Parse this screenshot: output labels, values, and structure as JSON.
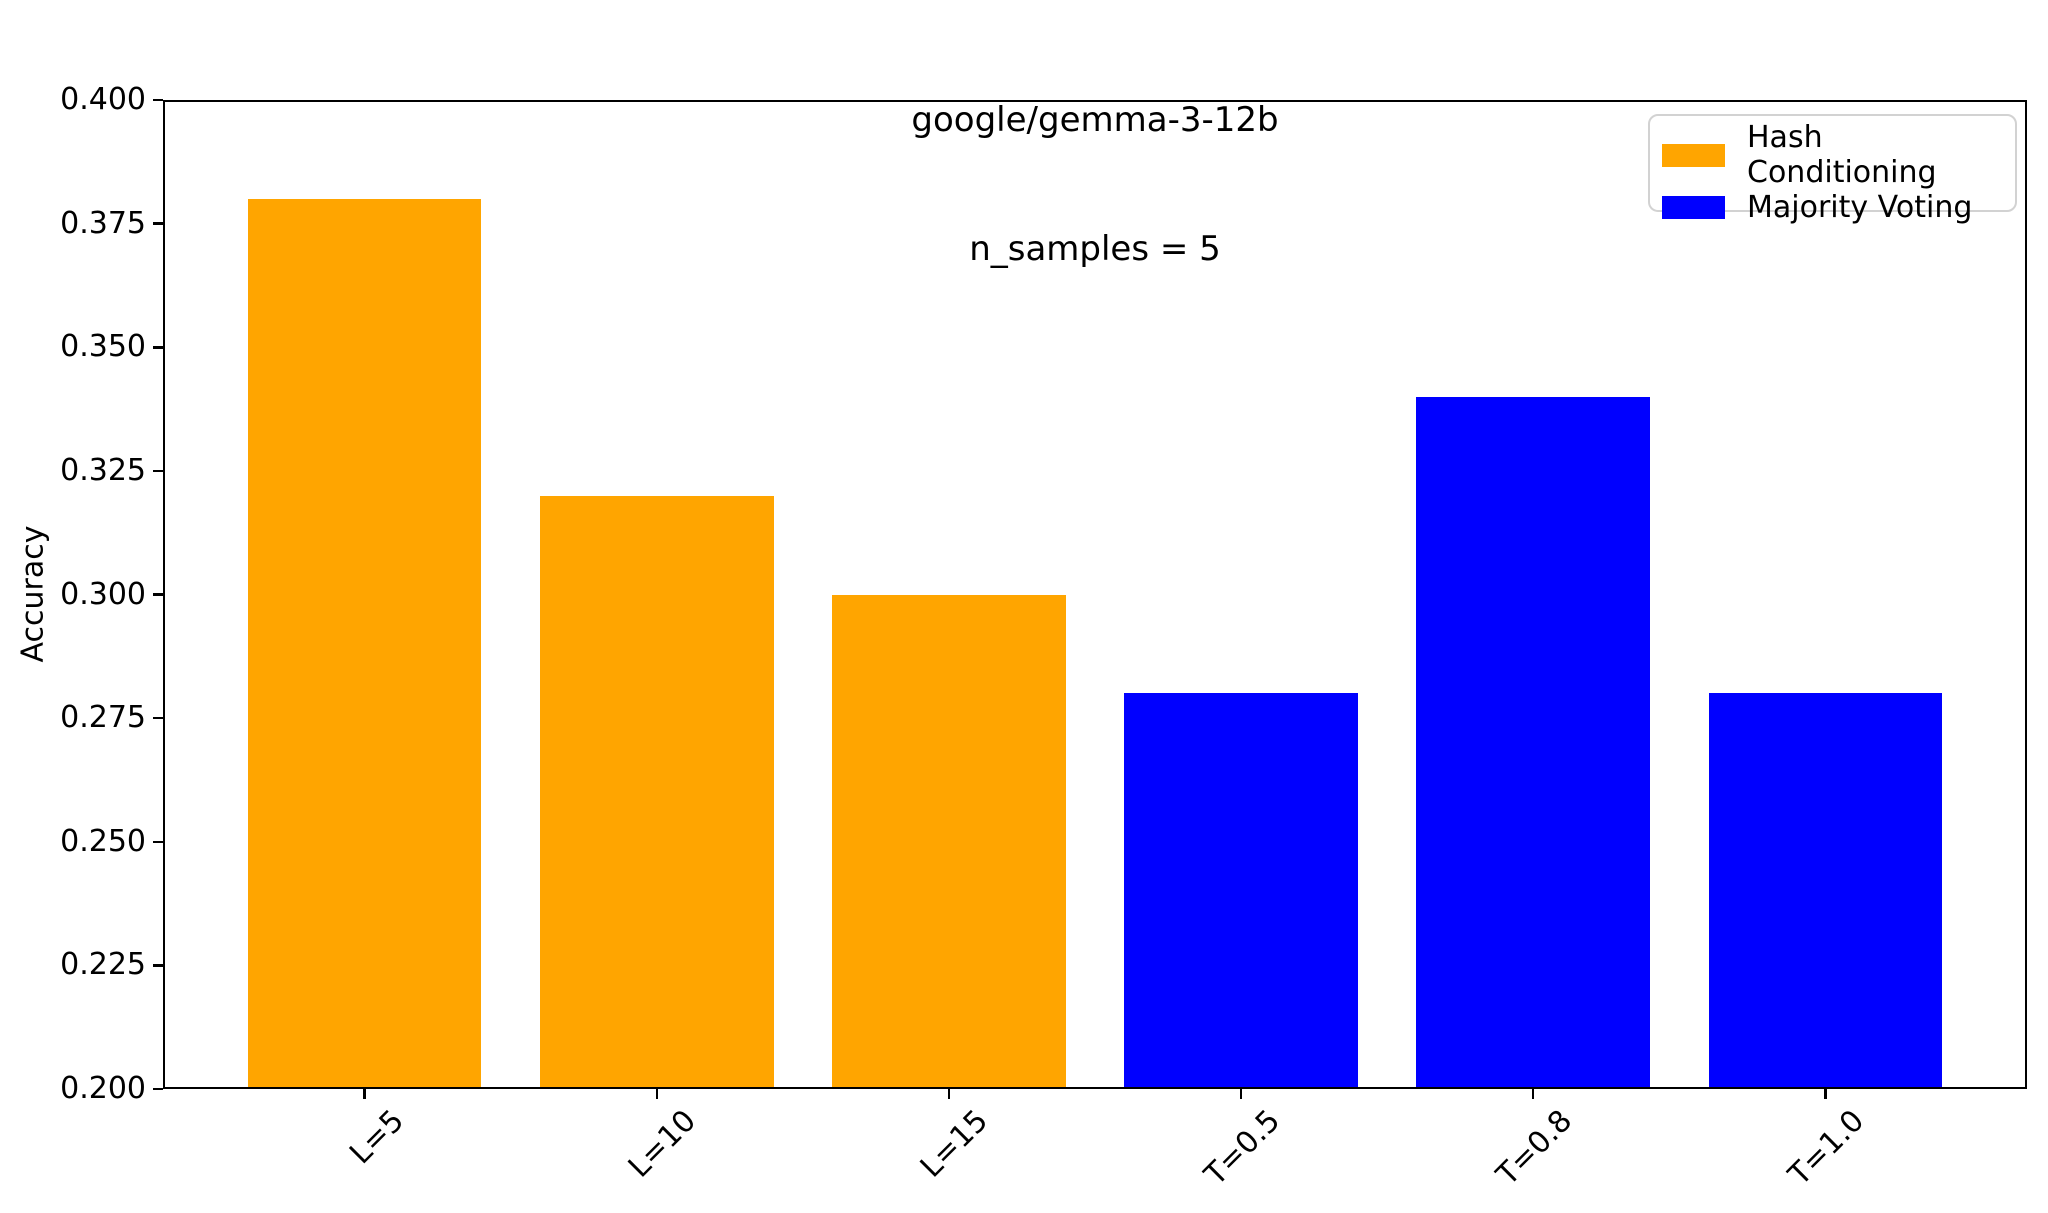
{
  "chart_data": {
    "type": "bar",
    "title": "google/gemma-3-12b",
    "subtitle": "n_samples = 5",
    "xlabel": "",
    "ylabel": "Accuracy",
    "ylim": [
      0.2,
      0.4
    ],
    "ytick_step": 0.025,
    "ytick_labels": [
      "0.200",
      "0.225",
      "0.250",
      "0.275",
      "0.300",
      "0.325",
      "0.350",
      "0.375",
      "0.400"
    ],
    "categories": [
      "L=5",
      "L=10",
      "L=15",
      "T=0.5",
      "T=0.8",
      "T=1.0"
    ],
    "values": [
      0.38,
      0.32,
      0.3,
      0.28,
      0.34,
      0.28
    ],
    "bar_colors": [
      "#FFA500",
      "#FFA500",
      "#FFA500",
      "#0000FF",
      "#0000FF",
      "#0000FF"
    ],
    "series": [
      {
        "name": "Hash Conditioning",
        "color": "#FFA500",
        "categories": [
          "L=5",
          "L=10",
          "L=15"
        ],
        "values": [
          0.38,
          0.32,
          0.3
        ]
      },
      {
        "name": "Majority Voting",
        "color": "#0000FF",
        "categories": [
          "T=0.5",
          "T=0.8",
          "T=1.0"
        ],
        "values": [
          0.28,
          0.34,
          0.28
        ]
      }
    ],
    "legend": {
      "position": "upper right",
      "entries": [
        "Hash Conditioning",
        "Majority Voting"
      ]
    },
    "grid": false,
    "xtick_rotation": 45
  }
}
